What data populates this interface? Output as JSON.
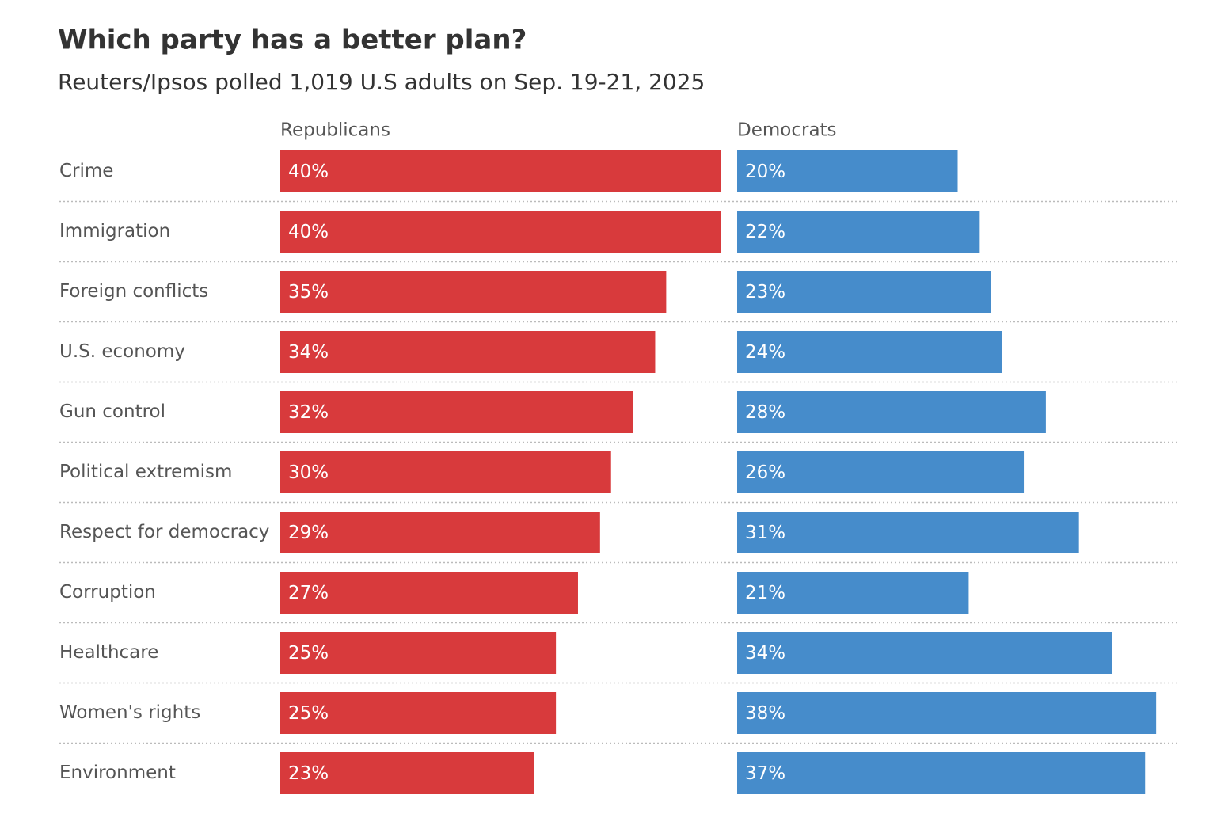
{
  "chart_data": {
    "type": "bar",
    "orientation": "horizontal",
    "title": "Which party has a better plan?",
    "subtitle": "Reuters/Ipsos polled 1,019 U.S adults on Sep. 19-21, 2025",
    "categories": [
      "Crime",
      "Immigration",
      "Foreign conflicts",
      "U.S. economy",
      "Gun control",
      "Political extremism",
      "Respect for democracy",
      "Corruption",
      "Healthcare",
      "Women's rights",
      "Environment"
    ],
    "series": [
      {
        "name": "Republicans",
        "color": "#d83a3c",
        "values": [
          40,
          40,
          35,
          34,
          32,
          30,
          29,
          27,
          25,
          25,
          23
        ],
        "value_labels": [
          "40%",
          "40%",
          "35%",
          "34%",
          "32%",
          "30%",
          "29%",
          "27%",
          "25%",
          "25%",
          "23%"
        ]
      },
      {
        "name": "Democrats",
        "color": "#468ccb",
        "values": [
          20,
          22,
          23,
          24,
          28,
          26,
          31,
          21,
          34,
          38,
          37
        ],
        "value_labels": [
          "20%",
          "22%",
          "23%",
          "24%",
          "28%",
          "26%",
          "31%",
          "21%",
          "34%",
          "38%",
          "37%"
        ]
      }
    ],
    "xlim": [
      0,
      40
    ]
  }
}
